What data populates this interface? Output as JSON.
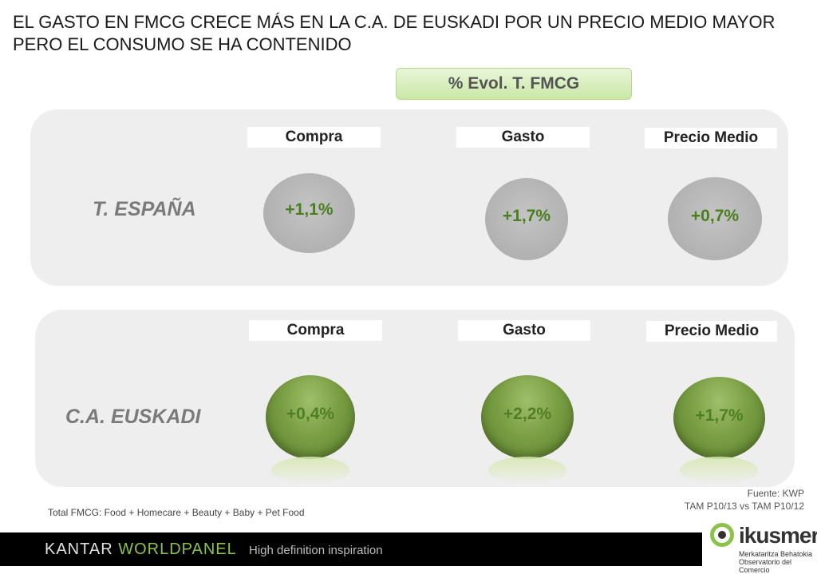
{
  "title": "EL GASTO EN FMCG CRECE MÁS EN LA C.A. DE EUSKADI POR UN PRECIO MEDIO MAYOR PERO EL CONSUMO SE HA CONTENIDO",
  "badge": "% Evol. T. FMCG",
  "espana": {
    "region": "T. ESPAÑA",
    "columns": [
      "Compra",
      "Gasto",
      "Precio Medio"
    ],
    "values": [
      "+1,1%",
      "+1,7%",
      "+0,7%"
    ]
  },
  "euskadi": {
    "region": "C.A. EUSKADI",
    "columns": [
      "Compra",
      "Gasto",
      "Precio Medio"
    ],
    "values": [
      "+0,4%",
      "+2,2%",
      "+1,7%"
    ]
  },
  "footnote": "Total FMCG: Food + Homecare + Beauty + Baby + Pet Food",
  "source": {
    "line1": "Fuente: KWP",
    "line2": "TAM P10/13 vs TAM P10/12"
  },
  "footer": {
    "brand_a": "KANTAR ",
    "brand_b": "WORLDPANEL",
    "tagline": "High definition inspiration"
  },
  "ikusmer": {
    "name": "ikusmer",
    "sub1": "Merkataritza Behatokia",
    "sub2": "Observatorio del Comercio"
  },
  "colors": {
    "accent_green": "#8bc34a",
    "value_green": "#4a7f1e",
    "panel": "#eeeeee"
  }
}
